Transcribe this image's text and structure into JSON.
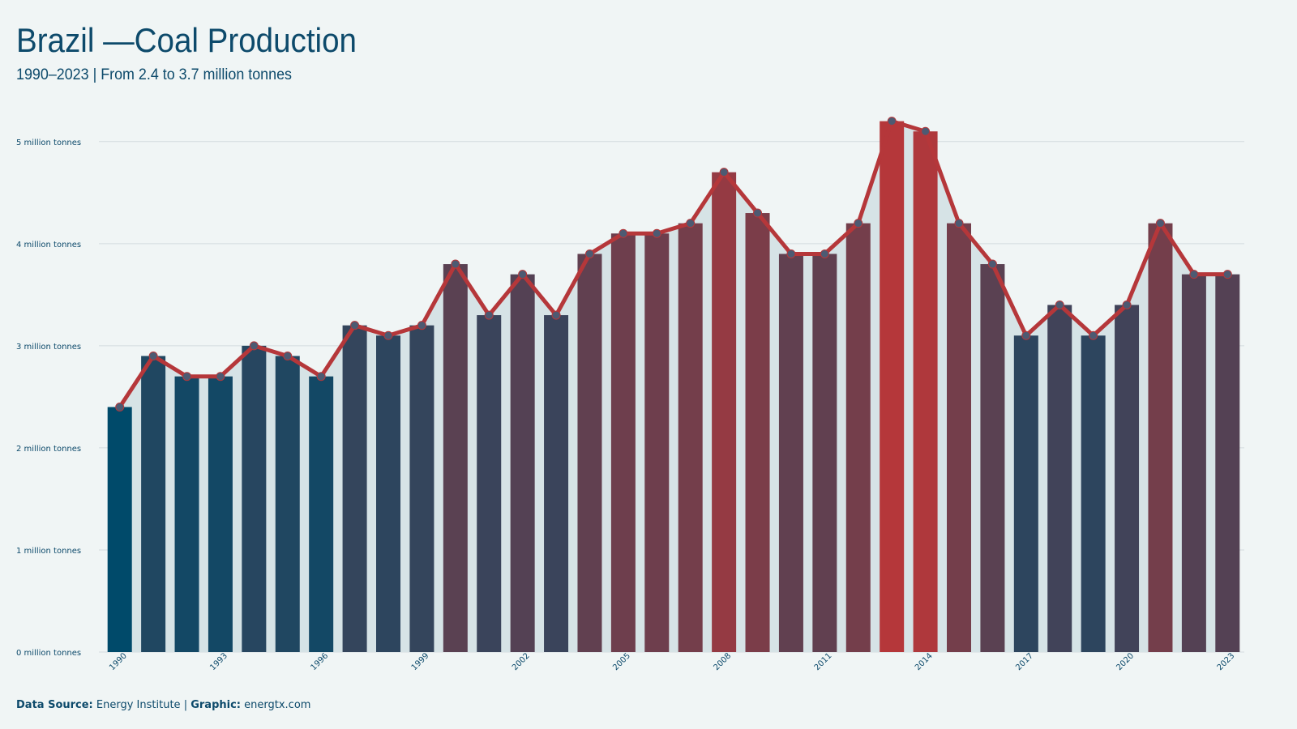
{
  "chart_data": {
    "type": "bar_line",
    "title": "Brazil —Coal Production",
    "subtitle": "1990–2023 | From 2.4 to 3.7 million tonnes",
    "categories": [
      "1990",
      null,
      null,
      "1993",
      null,
      null,
      "1996",
      null,
      null,
      "1999",
      null,
      null,
      "2002",
      null,
      null,
      "2005",
      null,
      null,
      "2008",
      null,
      null,
      "2011",
      null,
      null,
      "2014",
      null,
      null,
      "2017",
      null,
      null,
      "2020",
      null,
      null,
      "2023"
    ],
    "values": [
      2.4,
      2.9,
      2.7,
      2.7,
      3.0,
      2.9,
      2.7,
      3.2,
      3.1,
      3.2,
      3.8,
      3.3,
      3.7,
      3.3,
      3.9,
      4.1,
      4.1,
      4.2,
      4.7,
      4.3,
      3.9,
      3.9,
      4.2,
      5.2,
      5.1,
      4.2,
      3.8,
      3.1,
      3.4,
      3.1,
      3.4,
      4.2,
      3.7,
      3.7
    ],
    "ylim": [
      0,
      5.3
    ],
    "yticks": [
      {
        "value": 0,
        "label": "0 million tonnes"
      },
      {
        "value": 1,
        "label": "1 million tonnes"
      },
      {
        "value": 2,
        "label": "2 million tonnes"
      },
      {
        "value": 3,
        "label": "3 million tonnes"
      },
      {
        "value": 4,
        "label": "4 million tonnes"
      },
      {
        "value": 5,
        "label": "5 million tonnes"
      }
    ],
    "grid": true,
    "bar_color_low": "#004a6a",
    "bar_color_high": "#b5373a",
    "line_color": "#b5373a",
    "point_color": "#4d5a72",
    "area_color": "#d6e3e6",
    "footer": {
      "source_label": "Data Source:",
      "source": "Energy Institute",
      "separator": "|",
      "graphic_label": "Graphic:",
      "graphic": "energtx.com"
    }
  }
}
